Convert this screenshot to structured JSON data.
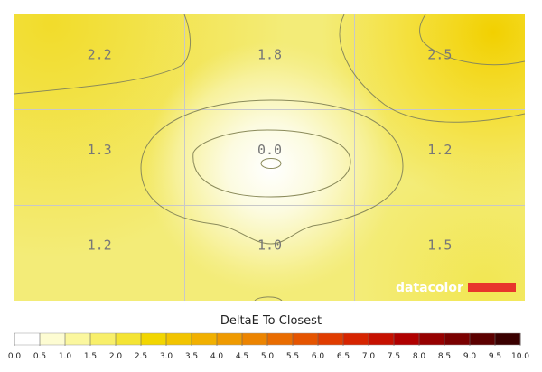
{
  "chart_data": {
    "type": "heatmap",
    "title": "DeltaE To Closest",
    "rows": 3,
    "cols": 3,
    "cell_labels": [
      [
        "2.2",
        "1.8",
        "2.5"
      ],
      [
        "1.3",
        "0.0",
        "1.2"
      ],
      [
        "1.2",
        "1.0",
        "1.5"
      ]
    ],
    "values": [
      [
        2.2,
        1.8,
        2.5
      ],
      [
        1.3,
        0.0,
        1.2
      ],
      [
        1.2,
        1.0,
        1.5
      ]
    ],
    "grid": true,
    "contours": true,
    "colorbar": {
      "ticks": [
        "0.0",
        "0.5",
        "1.0",
        "1.5",
        "2.0",
        "2.5",
        "3.0",
        "3.5",
        "4.0",
        "4.5",
        "5.0",
        "5.5",
        "6.0",
        "6.5",
        "7.0",
        "7.5",
        "8.0",
        "8.5",
        "9.0",
        "9.5",
        "10.0"
      ],
      "range": [
        0,
        10
      ],
      "colors": [
        "#ffffff",
        "#fdfcd2",
        "#fbf79e",
        "#f8ef6a",
        "#f4e434",
        "#f2d600",
        "#f2c400",
        "#f1b000",
        "#ef9a00",
        "#ec8400",
        "#e96c00",
        "#e55400",
        "#e03c00",
        "#d62400",
        "#c61000",
        "#b00000",
        "#960000",
        "#7a0000",
        "#5c0000",
        "#3a0000",
        "#000000"
      ]
    },
    "watermark": {
      "text": "datacolor",
      "bar_color": "#e8352c"
    }
  }
}
